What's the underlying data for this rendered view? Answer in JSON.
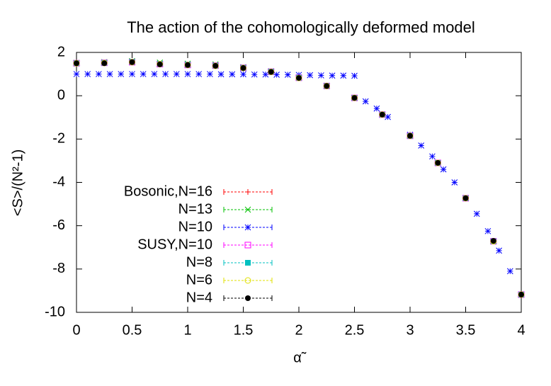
{
  "chart_data": {
    "type": "scatter",
    "title": "The action of the cohomologically deformed model",
    "xlabel": "α̃",
    "ylabel": "<S>/(N²-1)",
    "xlim": [
      0,
      4
    ],
    "ylim": [
      -10,
      2
    ],
    "xticks": [
      0,
      0.5,
      1,
      1.5,
      2,
      2.5,
      3,
      3.5,
      4
    ],
    "yticks": [
      2,
      0,
      -2,
      -4,
      -6,
      -8,
      -10
    ],
    "series": [
      {
        "name": "Bosonic,N=16",
        "color": "#ff0000",
        "marker": "plus",
        "x": [
          0,
          0.25,
          0.5,
          0.75,
          1,
          1.25,
          1.5,
          1.75,
          2,
          2.25,
          2.5,
          2.75,
          3,
          3.25,
          3.5,
          3.75,
          4
        ],
        "values": [
          1.5,
          1.52,
          1.55,
          1.47,
          1.43,
          1.4,
          1.3,
          1.12,
          0.84,
          0.45,
          -0.1,
          -0.86,
          -1.84,
          -3.1,
          -4.72,
          -6.72,
          -9.17
        ]
      },
      {
        "name": "N=13",
        "color": "#00c000",
        "marker": "cross",
        "x": [
          0,
          0.25,
          0.5,
          0.75,
          1,
          1.25,
          1.5,
          1.75,
          2,
          2.25,
          2.5,
          2.75,
          3,
          3.25,
          3.5,
          3.75,
          4
        ],
        "values": [
          1.52,
          1.55,
          1.6,
          1.53,
          1.48,
          1.45,
          1.32,
          1.13,
          0.85,
          0.46,
          -0.1,
          -0.87,
          -1.85,
          -3.1,
          -4.73,
          -6.72,
          -9.18
        ]
      },
      {
        "name": "N=10",
        "color": "#0000ff",
        "marker": "star",
        "x": [
          0,
          0.1,
          0.2,
          0.3,
          0.4,
          0.5,
          0.6,
          0.7,
          0.8,
          0.9,
          1,
          1.1,
          1.2,
          1.3,
          1.4,
          1.5,
          1.6,
          1.7,
          1.8,
          1.9,
          2,
          2.1,
          2.2,
          2.3,
          2.4,
          2.5,
          2.6,
          2.7,
          2.8,
          3.0,
          3.1,
          3.2,
          3.3,
          3.4,
          3.6,
          3.7,
          3.8,
          3.9
        ],
        "values": [
          1.0,
          1.0,
          1.0,
          1.0,
          1.0,
          1.0,
          1.0,
          1.0,
          1.0,
          1.0,
          1.0,
          1.0,
          1.0,
          0.99,
          0.99,
          0.99,
          0.98,
          0.98,
          0.97,
          0.97,
          0.96,
          0.95,
          0.94,
          0.93,
          0.93,
          0.92,
          -0.26,
          -0.59,
          -0.98,
          -1.8,
          -2.3,
          -2.8,
          -3.4,
          -4.0,
          -5.45,
          -6.25,
          -7.15,
          -8.1
        ]
      },
      {
        "name": "SUSY,N=10",
        "color": "#ff00ff",
        "marker": "square",
        "x": [
          0,
          0.25,
          0.5,
          0.75,
          1,
          1.25,
          1.5,
          1.75,
          2,
          2.25,
          2.5,
          2.75,
          3,
          3.25,
          3.5,
          3.75,
          4
        ],
        "values": [
          1.5,
          1.52,
          1.55,
          1.46,
          1.42,
          1.39,
          1.29,
          1.11,
          0.83,
          0.45,
          -0.1,
          -0.87,
          -1.85,
          -3.1,
          -4.73,
          -6.72,
          -9.18
        ]
      },
      {
        "name": "N=8",
        "color": "#00c0c0",
        "marker": "fsquare",
        "x": [
          0,
          0.25,
          0.5,
          0.75,
          1,
          1.25,
          1.5,
          1.75,
          2,
          2.25,
          2.5,
          2.75,
          3,
          3.25,
          3.5,
          3.75,
          4
        ],
        "values": [
          1.5,
          1.52,
          1.56,
          1.47,
          1.43,
          1.39,
          1.29,
          1.11,
          0.83,
          0.45,
          -0.1,
          -0.87,
          -1.85,
          -3.1,
          -4.73,
          -6.72,
          -9.18
        ]
      },
      {
        "name": "N=6",
        "color": "#e0e000",
        "marker": "circle",
        "x": [
          0,
          0.25,
          0.5,
          0.75,
          1,
          1.25,
          1.5,
          1.75,
          2,
          2.25,
          2.5,
          2.75,
          3,
          3.25,
          3.5,
          3.75,
          4
        ],
        "values": [
          1.5,
          1.51,
          1.55,
          1.46,
          1.42,
          1.38,
          1.28,
          1.1,
          0.82,
          0.45,
          -0.1,
          -0.87,
          -1.85,
          -3.1,
          -4.73,
          -6.72,
          -9.18
        ]
      },
      {
        "name": "N=4",
        "color": "#000000",
        "marker": "fcircle",
        "x": [
          0,
          0.25,
          0.5,
          0.75,
          1,
          1.25,
          1.5,
          1.75,
          2,
          2.25,
          2.5,
          2.75,
          3,
          3.25,
          3.5,
          3.75,
          4
        ],
        "values": [
          1.5,
          1.5,
          1.55,
          1.45,
          1.42,
          1.38,
          1.28,
          1.1,
          0.82,
          0.45,
          -0.1,
          -0.87,
          -1.85,
          -3.1,
          -4.73,
          -6.7,
          -9.18
        ]
      }
    ]
  }
}
